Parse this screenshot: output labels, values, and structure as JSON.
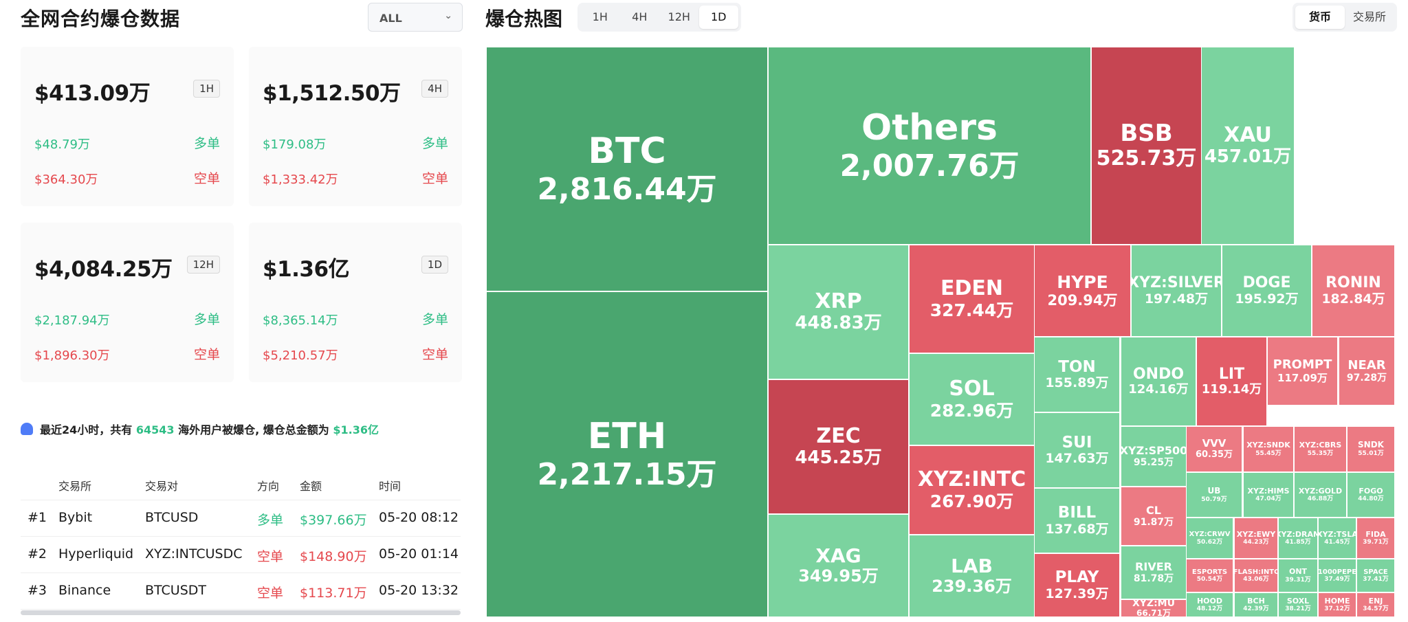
{
  "left_panel": {
    "title": "全网合约爆仓数据",
    "filter_select": "ALL",
    "cards": [
      {
        "total": "$413.09万",
        "period": "1H",
        "long_value": "$48.79万",
        "long_label": "多单",
        "short_value": "$364.30万",
        "short_label": "空单"
      },
      {
        "total": "$1,512.50万",
        "period": "4H",
        "long_value": "$179.08万",
        "long_label": "多单",
        "short_value": "$1,333.42万",
        "short_label": "空单"
      },
      {
        "total": "$4,084.25万",
        "period": "12H",
        "long_value": "$2,187.94万",
        "long_label": "多单",
        "short_value": "$1,896.30万",
        "short_label": "空单"
      },
      {
        "total": "$1.36亿",
        "period": "1D",
        "long_value": "$8,365.14万",
        "long_label": "多单",
        "short_value": "$5,210.57万",
        "short_label": "空单"
      }
    ],
    "notice": {
      "prefix": "最近24小时，共有",
      "count": "64543",
      "middle": "海外用户被爆仓, 爆仓总金额为",
      "total": "$1.36亿"
    },
    "table": {
      "headers": [
        "交易所",
        "交易对",
        "方向",
        "金额",
        "时间"
      ],
      "rows": [
        {
          "rank": "#1",
          "exchange": "Bybit",
          "pair": "BTCUSD",
          "side": "多单",
          "side_type": "long",
          "amount": "$397.66万",
          "time": "05-20 08:12"
        },
        {
          "rank": "#2",
          "exchange": "Hyperliquid",
          "pair": "XYZ:INTCUSDC",
          "side": "空单",
          "side_type": "short",
          "amount": "$148.90万",
          "time": "05-20 01:14"
        },
        {
          "rank": "#3",
          "exchange": "Binance",
          "pair": "BTCUSDT",
          "side": "空单",
          "side_type": "short",
          "amount": "$113.71万",
          "time": "05-20 13:32"
        }
      ]
    }
  },
  "heatmap": {
    "title": "爆仓热图",
    "period_tabs": [
      "1H",
      "4H",
      "12H",
      "1D"
    ],
    "active_period": "1D",
    "view_tabs": [
      "货币",
      "交易所"
    ],
    "active_view": "货币",
    "colors": {
      "green_dark": "#4aa66f",
      "green_mid": "#5ab97f",
      "green_light": "#7bd39f",
      "red_dark": "#c64552",
      "red_mid": "#e35d68",
      "red_light": "#ec7a83"
    },
    "cells": [
      {
        "sym": "BTC",
        "val": "2,816.44万"
      },
      {
        "sym": "ETH",
        "val": "2,217.15万"
      },
      {
        "sym": "Others",
        "val": "2,007.76万"
      },
      {
        "sym": "BSB",
        "val": "525.73万"
      },
      {
        "sym": "XAU",
        "val": "457.01万"
      },
      {
        "sym": "XRP",
        "val": "448.83万"
      },
      {
        "sym": "ZEC",
        "val": "445.25万"
      },
      {
        "sym": "XAG",
        "val": "349.95万"
      },
      {
        "sym": "EDEN",
        "val": "327.44万"
      },
      {
        "sym": "SOL",
        "val": "282.96万"
      },
      {
        "sym": "XYZ:INTC",
        "val": "267.90万"
      },
      {
        "sym": "LAB",
        "val": "239.36万"
      },
      {
        "sym": "HYPE",
        "val": "209.94万"
      },
      {
        "sym": "TON",
        "val": "155.89万"
      },
      {
        "sym": "SUI",
        "val": "147.63万"
      },
      {
        "sym": "BILL",
        "val": "137.68万"
      },
      {
        "sym": "PLAY",
        "val": "127.39万"
      },
      {
        "sym": "XYZ:SILVER",
        "val": "197.48万"
      },
      {
        "sym": "DOGE",
        "val": "195.92万"
      },
      {
        "sym": "RONIN",
        "val": "182.84万"
      },
      {
        "sym": "ONDO",
        "val": "124.16万"
      },
      {
        "sym": "LIT",
        "val": "119.14万"
      },
      {
        "sym": "PROMPT",
        "val": "117.09万"
      },
      {
        "sym": "NEAR",
        "val": "97.28万"
      },
      {
        "sym": "XYZ:SP500",
        "val": "95.25万"
      },
      {
        "sym": "CL",
        "val": "91.87万"
      },
      {
        "sym": "RIVER",
        "val": "81.78万"
      },
      {
        "sym": "XYZ:MU",
        "val": "66.71万"
      },
      {
        "sym": "VVV",
        "val": "60.35万"
      },
      {
        "sym": "XYZ:SNDK",
        "val": "55.45万"
      },
      {
        "sym": "XYZ:CBRS",
        "val": "55.35万"
      },
      {
        "sym": "SNDK",
        "val": "55.01万"
      },
      {
        "sym": "UB",
        "val": "50.79万"
      },
      {
        "sym": "XYZ:HIMS",
        "val": "47.04万"
      },
      {
        "sym": "XYZ:GOLD",
        "val": "46.88万"
      },
      {
        "sym": "FOGO",
        "val": "44.80万"
      },
      {
        "sym": "XYZ:CRWV",
        "val": "50.62万"
      },
      {
        "sym": "XYZ:EWY",
        "val": "44.23万"
      },
      {
        "sym": "XYZ:DRAM",
        "val": "41.85万"
      },
      {
        "sym": "XYZ:TSLA",
        "val": "41.45万"
      },
      {
        "sym": "FIDA",
        "val": "39.71万"
      },
      {
        "sym": "ESPORTS",
        "val": "50.54万"
      },
      {
        "sym": "FLASH:INTC",
        "val": "43.06万"
      },
      {
        "sym": "ONT",
        "val": "39.31万"
      },
      {
        "sym": "1000PEPE",
        "val": "37.49万"
      },
      {
        "sym": "SPACE",
        "val": "37.41万"
      },
      {
        "sym": "HOOD",
        "val": "48.12万"
      },
      {
        "sym": "BCH",
        "val": "42.39万"
      },
      {
        "sym": "SOXL",
        "val": "38.21万"
      },
      {
        "sym": "HOME",
        "val": "37.12万"
      },
      {
        "sym": "ENJ",
        "val": "34.57万"
      }
    ]
  }
}
